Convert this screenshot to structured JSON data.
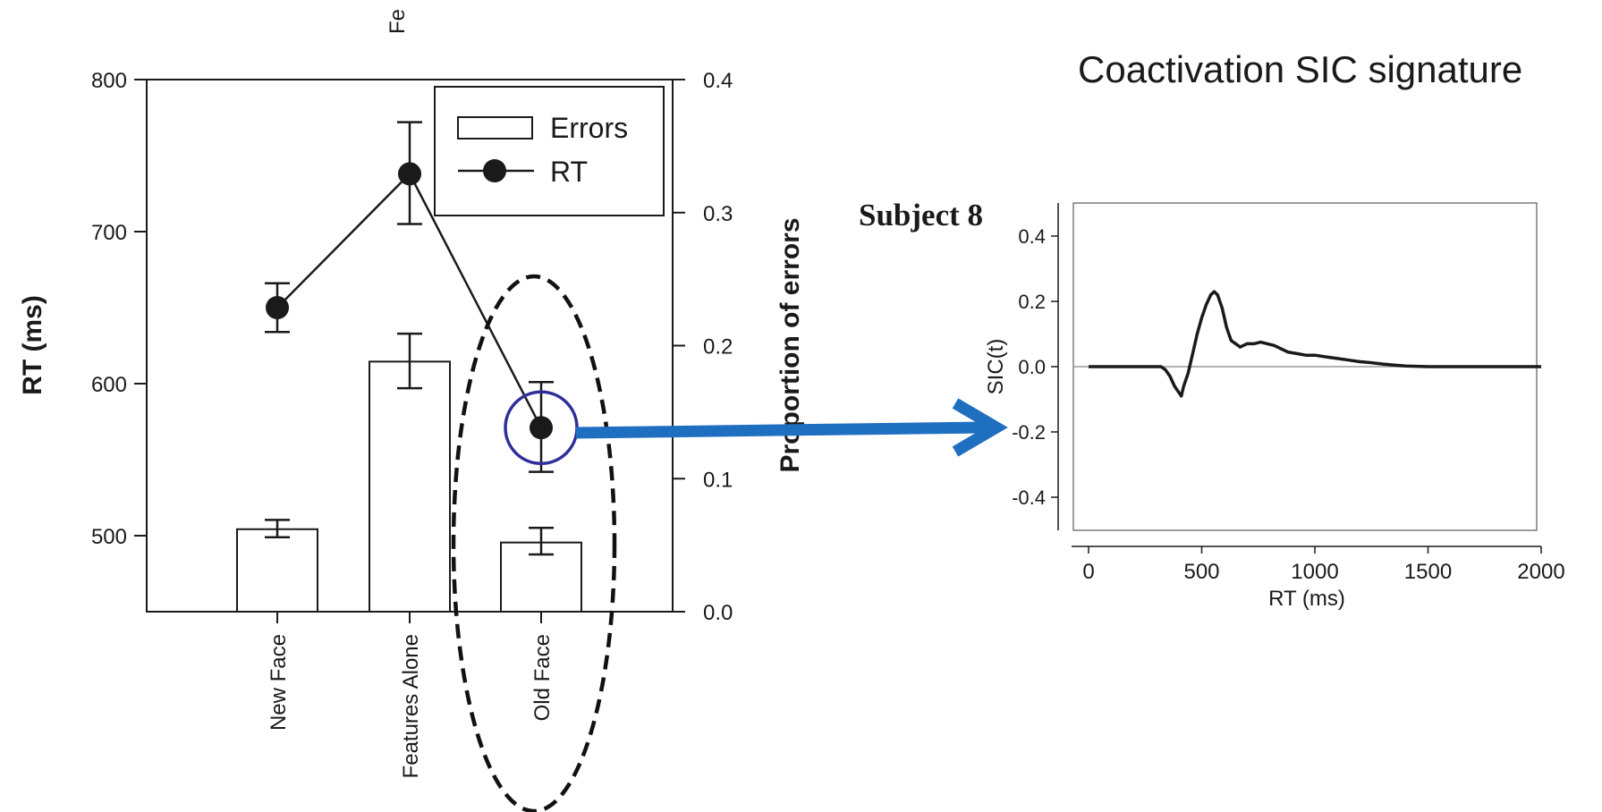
{
  "top_fragment": "Fe",
  "right_title": "Coactivation SIC signature",
  "colors": {
    "ink": "#1a1a1a",
    "arrow": "#1f6fc1",
    "circle": "#2e2f9a",
    "zero_line": "#9a9a9a"
  },
  "chart_data": [
    {
      "type": "bar",
      "categories": [
        "New Face",
        "Features Alone",
        "Old Face"
      ],
      "ylabel": "RT (ms)",
      "y2label": "Proportion of errors",
      "ylim": [
        450,
        800
      ],
      "yticks": [
        500,
        600,
        700,
        800
      ],
      "ytick_labels": [
        "500",
        "600",
        "700",
        "800"
      ],
      "y2lim": [
        0.0,
        0.4
      ],
      "y2ticks": [
        0.0,
        0.1,
        0.2,
        0.3,
        0.4
      ],
      "y2tick_labels": [
        "0.0",
        "0.1",
        "0.2",
        "0.3",
        "0.4"
      ],
      "legend": {
        "placement": "top-right",
        "entries": [
          "Errors",
          "RT"
        ]
      },
      "series": [
        {
          "name": "Errors",
          "kind": "bar",
          "axis": "right",
          "values": [
            0.062,
            0.188,
            0.052
          ],
          "err_low": [
            0.056,
            0.168,
            0.043
          ],
          "err_high": [
            0.069,
            0.209,
            0.063
          ]
        },
        {
          "name": "RT",
          "kind": "line-marker",
          "axis": "left",
          "values": [
            650,
            738,
            571
          ],
          "err_low": [
            634,
            705,
            542
          ],
          "err_high": [
            666,
            772,
            601
          ]
        }
      ],
      "highlight": {
        "category": "Old Face",
        "series": "RT"
      }
    },
    {
      "type": "line",
      "annotation": "Subject  8",
      "xlabel": "RT (ms)",
      "ylabel": "SIC(t)",
      "xlim": [
        -50,
        2000
      ],
      "ylim": [
        -0.5,
        0.5
      ],
      "xticks": [
        0,
        500,
        1000,
        1500,
        2000
      ],
      "xtick_labels": [
        "0",
        "500",
        "1000",
        "1500",
        "2000"
      ],
      "yticks": [
        -0.4,
        -0.2,
        0.0,
        0.2,
        0.4
      ],
      "ytick_labels": [
        "-0.4",
        "-0.2",
        "0.0",
        "0.2",
        "0.4"
      ],
      "series": [
        {
          "x": [
            0,
            250,
            320,
            340,
            360,
            380,
            400,
            410,
            420,
            440,
            460,
            480,
            500,
            520,
            540,
            555,
            570,
            590,
            610,
            630,
            650,
            670,
            700,
            730,
            760,
            790,
            820,
            850,
            880,
            920,
            960,
            1000,
            1050,
            1100,
            1150,
            1200,
            1250,
            1300,
            1350,
            1400,
            1500,
            1600,
            1800,
            2000
          ],
          "y": [
            0,
            0,
            0,
            -0.01,
            -0.03,
            -0.06,
            -0.08,
            -0.09,
            -0.06,
            -0.02,
            0.04,
            0.1,
            0.15,
            0.19,
            0.22,
            0.23,
            0.22,
            0.18,
            0.12,
            0.08,
            0.07,
            0.06,
            0.07,
            0.07,
            0.075,
            0.07,
            0.065,
            0.055,
            0.045,
            0.04,
            0.035,
            0.035,
            0.03,
            0.025,
            0.02,
            0.015,
            0.012,
            0.008,
            0.005,
            0.002,
            0,
            0,
            0,
            0
          ]
        }
      ]
    }
  ]
}
